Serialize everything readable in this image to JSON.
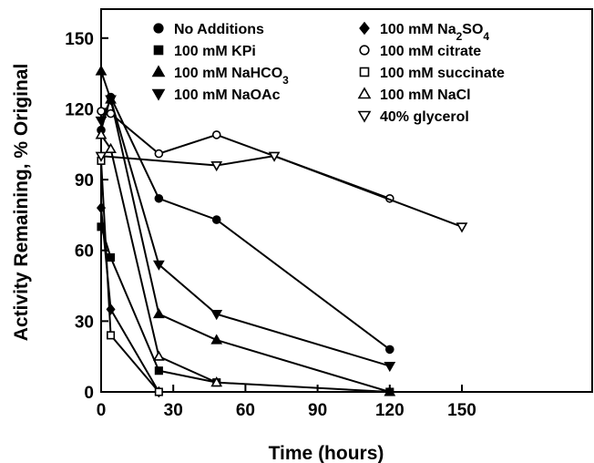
{
  "chart_data": {
    "type": "line",
    "title": "",
    "xlabel": "Time (hours)",
    "ylabel": "Activity Remaining, % Original",
    "xlim": [
      0,
      160
    ],
    "ylim": [
      0,
      160
    ],
    "xticks": [
      0,
      30,
      60,
      90,
      120,
      150
    ],
    "yticks": [
      0,
      30,
      60,
      90,
      120,
      150
    ],
    "grid": false,
    "legend_position": "top",
    "series": [
      {
        "name": "No Additions",
        "marker": "circle-filled",
        "x": [
          0,
          4,
          24,
          48,
          120
        ],
        "y": [
          111,
          125,
          82,
          73,
          18
        ]
      },
      {
        "name": "100 mM KPi",
        "marker": "square-filled",
        "x": [
          0,
          4,
          24,
          48,
          120
        ],
        "y": [
          70,
          57,
          9,
          4,
          0
        ]
      },
      {
        "name": "100 mM NaHCO3",
        "name_main": "100 mM NaHCO",
        "name_sub": "3",
        "marker": "triangle-up-filled",
        "x": [
          0,
          4,
          24,
          48,
          120
        ],
        "y": [
          136,
          124,
          33,
          22,
          0
        ]
      },
      {
        "name": "100 mM NaOAc",
        "marker": "triangle-down-filled",
        "x": [
          0,
          4,
          24,
          48,
          120
        ],
        "y": [
          115,
          124,
          54,
          33,
          11
        ]
      },
      {
        "name": "100 mM Na2SO4",
        "name_main": "100 mM Na",
        "name_sub": "2",
        "name_rest": "SO",
        "name_sub2": "4",
        "marker": "diamond-filled",
        "x": [
          0,
          4,
          24
        ],
        "y": [
          78,
          35,
          0
        ]
      },
      {
        "name": "100 mM citrate",
        "marker": "circle-open",
        "x": [
          0,
          4,
          24,
          48,
          120
        ],
        "y": [
          119,
          118,
          101,
          109,
          82
        ]
      },
      {
        "name": "100 mM succinate",
        "marker": "square-open",
        "x": [
          0,
          4,
          24
        ],
        "y": [
          98,
          24,
          0
        ]
      },
      {
        "name": "100 mM NaCl",
        "marker": "triangle-up-open",
        "x": [
          0,
          4,
          24,
          48
        ],
        "y": [
          109,
          103,
          15,
          4
        ]
      },
      {
        "name": "40% glycerol",
        "marker": "triangle-down-open",
        "x": [
          0,
          48,
          72,
          150
        ],
        "y": [
          100,
          96,
          100,
          70
        ]
      }
    ]
  }
}
